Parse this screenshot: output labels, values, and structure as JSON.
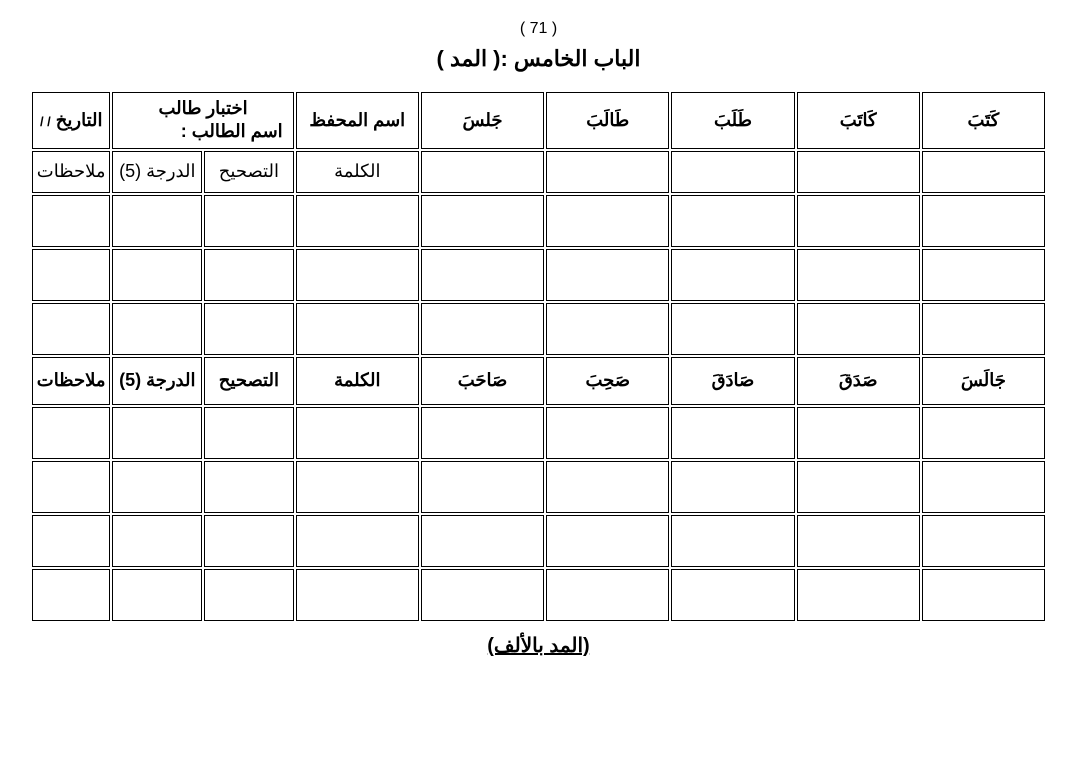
{
  "page_number": "( 71 )",
  "chapter_title": "الباب الخامس :( المد )",
  "header": {
    "vocab": [
      "كَتَبَ",
      "كَاتَبَ",
      "طَلَبَ",
      "طَالَبَ",
      "جَلسَ"
    ],
    "memorizer_name": "اسم المحفظ",
    "student_test_top": "اختبار طالب",
    "student_test_bottom": "اسم الطالب :",
    "date_label": "التاريخ",
    "date_slashes": "/  /"
  },
  "sub_labels": {
    "word": "الكلمة",
    "correction": "التصحيح",
    "grade": "الدرجة (5)",
    "notes": "ملاحظات"
  },
  "second_words": [
    "جَالَسَ",
    "صَدَقَ",
    "صَادَقَ",
    "صَحِبَ",
    "صَاحَبَ"
  ],
  "footer_title": "(المد بالألف)",
  "colors": {
    "background": "#ffffff",
    "border": "#000000",
    "text": "#000000"
  },
  "fonts": {
    "header_size": 18,
    "header_weight": "bold",
    "page_number_size": 16,
    "chapter_title_size": 22,
    "footer_size": 20
  },
  "table": {
    "rows_section1_empty": 3,
    "rows_section2_empty": 4,
    "border_spacing": 2
  }
}
